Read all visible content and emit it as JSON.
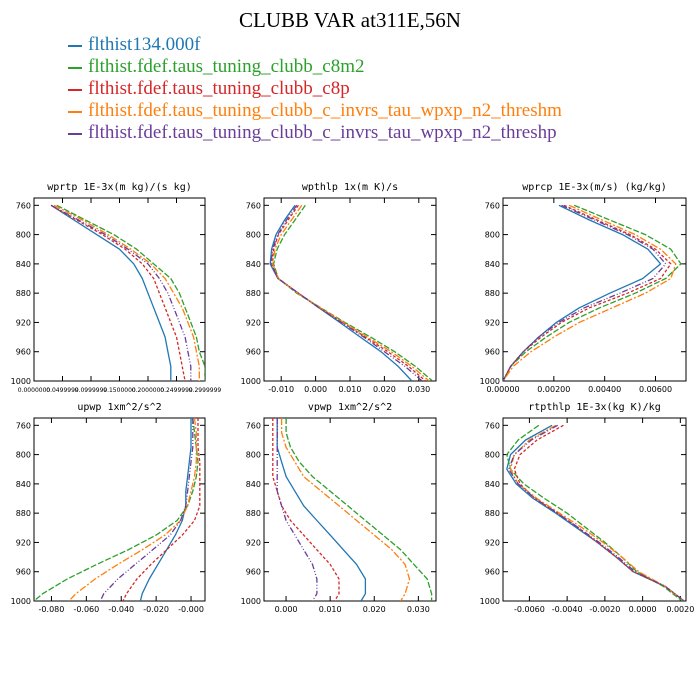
{
  "title": "CLUBB VAR at311E,56N",
  "legend": [
    {
      "label": "flthist134.000f",
      "color": "#1f77b4"
    },
    {
      "label": "flthist.fdef.taus_tuning_clubb_c8m2",
      "color": "#2ca02c"
    },
    {
      "label": "flthist.fdef.taus_tuning_clubb_c8p",
      "color": "#d62728"
    },
    {
      "label": "flthist.fdef.taus_tuning_clubb_c_invrs_tau_wpxp_n2_threshm",
      "color": "#ff7f0e"
    },
    {
      "label": "flthist.fdef.taus_tuning_clubb_c_invrs_tau_wpxp_n2_threshp",
      "color": "#6a3d9a"
    }
  ],
  "chart_data": [
    {
      "type": "line",
      "title": "wprtp  1E-3x(m kg)/(s kg)",
      "xlim": [
        0,
        0.3
      ],
      "ylim": [
        1000,
        750
      ],
      "xticks": [
        0,
        0.05,
        0.1,
        0.15,
        0.2,
        0.25,
        0.3
      ],
      "xtick_labels": [
        "0.0000000",
        "0.0499999",
        "0.0999999",
        "0.1500000",
        "0.2000000",
        "0.2499999",
        "0.2999999"
      ],
      "yticks": [
        760,
        800,
        840,
        880,
        920,
        960,
        1000
      ],
      "y": [
        760,
        780,
        800,
        820,
        840,
        860,
        880,
        900,
        920,
        940,
        960,
        980,
        1000
      ],
      "series": [
        {
          "values": [
            0.03,
            0.07,
            0.11,
            0.15,
            0.175,
            0.19,
            0.2,
            0.21,
            0.22,
            0.23,
            0.235,
            0.24,
            0.24
          ]
        },
        {
          "values": [
            0.04,
            0.09,
            0.14,
            0.18,
            0.21,
            0.24,
            0.255,
            0.265,
            0.275,
            0.285,
            0.29,
            0.3,
            0.3
          ]
        },
        {
          "values": [
            0.03,
            0.075,
            0.12,
            0.16,
            0.19,
            0.21,
            0.22,
            0.23,
            0.24,
            0.25,
            0.255,
            0.26,
            0.265
          ]
        },
        {
          "values": [
            0.035,
            0.085,
            0.13,
            0.17,
            0.205,
            0.23,
            0.245,
            0.26,
            0.27,
            0.28,
            0.285,
            0.29,
            0.29
          ]
        },
        {
          "values": [
            0.03,
            0.078,
            0.125,
            0.165,
            0.2,
            0.22,
            0.235,
            0.245,
            0.255,
            0.265,
            0.27,
            0.275,
            0.275
          ]
        }
      ]
    },
    {
      "type": "line",
      "title": "wpthlp  1x(m K)/s",
      "xlim": [
        -0.015,
        0.035
      ],
      "ylim": [
        1000,
        750
      ],
      "xticks": [
        -0.01,
        0.0,
        0.01,
        0.02,
        0.03
      ],
      "xtick_labels": [
        "-0.010",
        "0.000",
        "0.010",
        "0.020",
        "0.030"
      ],
      "yticks": [
        760,
        800,
        840,
        880,
        920,
        960,
        1000
      ],
      "y": [
        760,
        780,
        800,
        820,
        840,
        860,
        880,
        900,
        920,
        940,
        960,
        980,
        1000
      ],
      "series": [
        {
          "values": [
            -0.006,
            -0.009,
            -0.0115,
            -0.0128,
            -0.0132,
            -0.011,
            -0.005,
            0.001,
            0.007,
            0.013,
            0.019,
            0.024,
            0.028
          ]
        },
        {
          "values": [
            -0.003,
            -0.006,
            -0.009,
            -0.0112,
            -0.0122,
            -0.0108,
            -0.0055,
            0.0015,
            0.0085,
            0.016,
            0.023,
            0.029,
            0.034
          ]
        },
        {
          "values": [
            -0.005,
            -0.008,
            -0.0108,
            -0.0122,
            -0.0128,
            -0.0108,
            -0.005,
            0.0012,
            0.0078,
            0.0145,
            0.021,
            0.027,
            0.032
          ]
        },
        {
          "values": [
            -0.004,
            -0.007,
            -0.01,
            -0.0118,
            -0.0125,
            -0.0108,
            -0.0052,
            0.0014,
            0.0082,
            0.015,
            0.022,
            0.028,
            0.033
          ]
        },
        {
          "values": [
            -0.0055,
            -0.0085,
            -0.011,
            -0.0125,
            -0.013,
            -0.0109,
            -0.005,
            0.001,
            0.0075,
            0.014,
            0.02,
            0.026,
            0.031
          ]
        }
      ]
    },
    {
      "type": "line",
      "title": "wprcp  1E-3x(m/s) (kg/kg)",
      "xlim": [
        0,
        0.0072
      ],
      "ylim": [
        1000,
        750
      ],
      "xticks": [
        0,
        0.002,
        0.004,
        0.006
      ],
      "xtick_labels": [
        "0.00000",
        "0.00200",
        "0.00400",
        "0.00600"
      ],
      "yticks": [
        760,
        800,
        840,
        880,
        920,
        960,
        1000
      ],
      "y": [
        760,
        780,
        800,
        820,
        840,
        860,
        880,
        900,
        920,
        940,
        960,
        980,
        1000
      ],
      "series": [
        {
          "values": [
            0.0022,
            0.0034,
            0.0047,
            0.0057,
            0.0062,
            0.0055,
            0.0042,
            0.003,
            0.0021,
            0.0014,
            0.0008,
            0.0003,
            0.0
          ]
        },
        {
          "values": [
            0.0028,
            0.0042,
            0.0056,
            0.0066,
            0.007,
            0.0064,
            0.0052,
            0.0038,
            0.0026,
            0.0017,
            0.0009,
            0.0003,
            0.0
          ]
        },
        {
          "values": [
            0.0024,
            0.0037,
            0.005,
            0.006,
            0.0066,
            0.0062,
            0.0049,
            0.0034,
            0.0023,
            0.0015,
            0.0008,
            0.0003,
            0.0
          ]
        },
        {
          "values": [
            0.0026,
            0.0039,
            0.0052,
            0.0062,
            0.0068,
            0.0066,
            0.0056,
            0.0043,
            0.003,
            0.002,
            0.0011,
            0.0004,
            0.0
          ]
        },
        {
          "values": [
            0.0023,
            0.0036,
            0.0049,
            0.0059,
            0.0064,
            0.0059,
            0.0046,
            0.0032,
            0.0022,
            0.0014,
            0.0008,
            0.0003,
            0.0
          ]
        }
      ]
    },
    {
      "type": "line",
      "title": "upwp  1xm^2/s^2",
      "xlim": [
        -0.09,
        0.008
      ],
      "ylim": [
        1000,
        750
      ],
      "xticks": [
        -0.08,
        -0.06,
        -0.04,
        -0.02,
        0.0
      ],
      "xtick_labels": [
        "-0.080",
        "-0.060",
        "-0.040",
        "-0.020",
        "-0.000"
      ],
      "yticks": [
        760,
        800,
        840,
        880,
        920,
        960,
        1000
      ],
      "y": [
        750,
        770,
        790,
        810,
        830,
        850,
        870,
        890,
        910,
        930,
        950,
        970,
        990,
        1000
      ],
      "series": [
        {
          "values": [
            0.0,
            0.0,
            0.0,
            -0.001,
            -0.002,
            -0.003,
            -0.003,
            -0.005,
            -0.009,
            -0.014,
            -0.019,
            -0.024,
            -0.028,
            -0.029
          ]
        },
        {
          "values": [
            0.001,
            0.002,
            0.003,
            0.004,
            0.003,
            0.001,
            -0.002,
            -0.008,
            -0.02,
            -0.036,
            -0.054,
            -0.071,
            -0.085,
            -0.09
          ]
        },
        {
          "values": [
            0.004,
            0.004,
            0.004,
            0.005,
            0.005,
            0.005,
            0.005,
            0.002,
            -0.005,
            -0.014,
            -0.023,
            -0.031,
            -0.037,
            -0.039
          ]
        },
        {
          "values": [
            0.002,
            0.003,
            0.003,
            0.003,
            0.002,
            0.0,
            -0.002,
            -0.006,
            -0.015,
            -0.028,
            -0.042,
            -0.055,
            -0.066,
            -0.07
          ]
        },
        {
          "values": [
            0.001,
            0.001,
            0.001,
            0.0,
            -0.001,
            -0.002,
            -0.003,
            -0.006,
            -0.012,
            -0.022,
            -0.032,
            -0.042,
            -0.05,
            -0.052
          ]
        }
      ]
    },
    {
      "type": "line",
      "title": "vpwp  1xm^2/s^2",
      "xlim": [
        -0.005,
        0.034
      ],
      "ylim": [
        1000,
        750
      ],
      "xticks": [
        0.0,
        0.01,
        0.02,
        0.03
      ],
      "xtick_labels": [
        "0.000",
        "0.010",
        "0.020",
        "0.030"
      ],
      "yticks": [
        760,
        800,
        840,
        880,
        920,
        960,
        1000
      ],
      "y": [
        750,
        770,
        790,
        810,
        830,
        850,
        870,
        890,
        910,
        930,
        950,
        970,
        990,
        1000
      ],
      "series": [
        {
          "values": [
            -0.002,
            -0.002,
            -0.002,
            -0.001,
            0.0,
            0.002,
            0.004,
            0.007,
            0.01,
            0.013,
            0.016,
            0.018,
            0.018,
            0.017
          ]
        },
        {
          "values": [
            0.0,
            0.0,
            0.001,
            0.003,
            0.006,
            0.01,
            0.014,
            0.018,
            0.022,
            0.026,
            0.029,
            0.032,
            0.033,
            0.033
          ]
        },
        {
          "values": [
            -0.003,
            -0.003,
            -0.003,
            -0.003,
            -0.003,
            -0.002,
            -0.001,
            0.001,
            0.004,
            0.007,
            0.01,
            0.012,
            0.012,
            0.011
          ]
        },
        {
          "values": [
            -0.001,
            -0.001,
            0.0,
            0.002,
            0.004,
            0.008,
            0.012,
            0.016,
            0.02,
            0.024,
            0.027,
            0.028,
            0.027,
            0.026
          ]
        },
        {
          "values": [
            -0.002,
            -0.002,
            -0.002,
            -0.002,
            -0.002,
            -0.002,
            -0.001,
            0.0,
            0.002,
            0.004,
            0.006,
            0.007,
            0.007,
            0.006
          ]
        }
      ]
    },
    {
      "type": "line",
      "title": "rtpthlp  1E-3x(kg K)/kg",
      "xlim": [
        -0.0074,
        0.0023
      ],
      "ylim": [
        1000,
        750
      ],
      "xticks": [
        -0.006,
        -0.004,
        -0.002,
        0.0,
        0.002
      ],
      "xtick_labels": [
        "-0.0060",
        "-0.0040",
        "-0.0020",
        "0.0000",
        "0.0020"
      ],
      "yticks": [
        760,
        800,
        840,
        880,
        920,
        960,
        1000
      ],
      "y": [
        760,
        780,
        800,
        820,
        840,
        860,
        880,
        900,
        920,
        940,
        960,
        980,
        1000
      ],
      "series": [
        {
          "values": [
            -0.0048,
            -0.0062,
            -0.007,
            -0.0072,
            -0.0067,
            -0.0058,
            -0.0046,
            -0.0035,
            -0.0024,
            -0.0014,
            -0.0005,
            0.0012,
            0.0022
          ]
        },
        {
          "values": [
            -0.0055,
            -0.0066,
            -0.0072,
            -0.007,
            -0.0063,
            -0.0052,
            -0.004,
            -0.003,
            -0.002,
            -0.0011,
            -0.0003,
            0.0011,
            0.0021
          ]
        },
        {
          "values": [
            -0.0042,
            -0.0056,
            -0.0065,
            -0.0068,
            -0.0065,
            -0.0057,
            -0.0045,
            -0.0034,
            -0.0024,
            -0.0014,
            -0.0005,
            0.0012,
            0.0022
          ]
        },
        {
          "values": [
            -0.0046,
            -0.006,
            -0.0068,
            -0.007,
            -0.0066,
            -0.0056,
            -0.0044,
            -0.0032,
            -0.0021,
            -0.0011,
            -0.0002,
            0.0012,
            0.0022
          ]
        },
        {
          "values": [
            -0.0045,
            -0.0059,
            -0.0068,
            -0.0071,
            -0.0066,
            -0.0057,
            -0.0045,
            -0.0034,
            -0.0023,
            -0.0013,
            -0.0004,
            0.0012,
            0.0022
          ]
        }
      ]
    }
  ]
}
